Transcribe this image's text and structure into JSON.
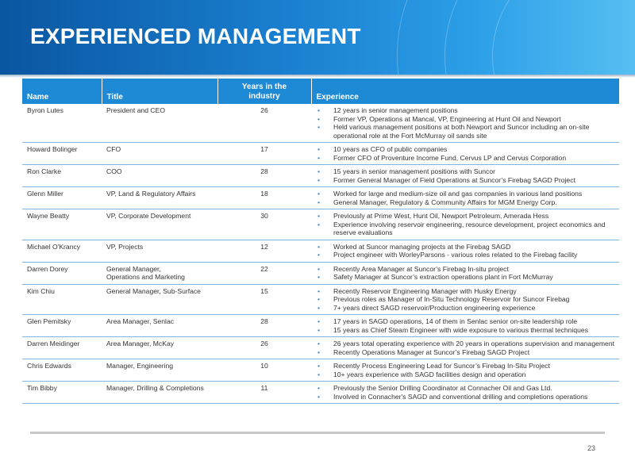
{
  "header": {
    "title": "EXPERIENCED MANAGEMENT"
  },
  "table": {
    "columns": [
      "Name",
      "Title",
      "Years in the industry",
      "Experience"
    ],
    "rows": [
      {
        "name": "Byron Lutes",
        "title": [
          "President and CEO"
        ],
        "years": "26",
        "experience": [
          "12 years in senior management positions",
          "Former VP, Operations at Mancal, VP, Engineering at Hunt Oil and Newport",
          "Held various management positions at both Newport and Suncor including an on-site operational role at the Fort McMurray oil sands site"
        ]
      },
      {
        "name": "Howard Bolinger",
        "title": [
          "CFO"
        ],
        "years": "17",
        "experience": [
          "10 years as CFO of public companies",
          "Former CFO of Proventure Income Fund, Cervus LP and Cervus Corporation"
        ]
      },
      {
        "name": "Ron Clarke",
        "title": [
          "COO"
        ],
        "years": "28",
        "experience": [
          "15 years in senior management positions with Suncor",
          "Former General Manager of Field Operations at Suncor’s Firebag SAGD Project"
        ]
      },
      {
        "name": "Glenn Miller",
        "title": [
          "VP, Land & Regulatory Affairs"
        ],
        "years": "18",
        "experience": [
          "Worked for large and medium-size oil and gas companies in various land positions",
          "General Manager, Regulatory & Community Affairs for MGM Energy Corp."
        ]
      },
      {
        "name": "Wayne Beatty",
        "title": [
          "VP, Corporate Development"
        ],
        "years": "30",
        "experience": [
          "Previously at Prime West, Hunt Oil, Newport Petroleum, Amerada Hess",
          "Experience involving reservoir engineering, resource development, project economics and reserve evaluations"
        ]
      },
      {
        "name": "Michael O'Krancy",
        "title": [
          "VP, Projects"
        ],
        "years": "12",
        "experience": [
          "Worked at Suncor managing projects at the Firebag SAGD",
          "Project engineer with WorleyParsons - various roles related to the Firebag facility"
        ]
      },
      {
        "name": "Darren Dorey",
        "title": [
          "General Manager,",
          "Operations and Marketing"
        ],
        "years": "22",
        "experience": [
          "Recently Area Manager at Suncor’s Firebag In-situ project",
          "Safety Manager at Suncor’s extraction operations plant in Fort McMurray"
        ]
      },
      {
        "name": "Kim Chiu",
        "title": [
          "General Manager, Sub-Surface"
        ],
        "years": "15",
        "experience": [
          "Recently Reservoir Engineering Manager with Husky Energy",
          "Previous roles as Manager of In-Situ Technology Reservoir for Suncor Firebag",
          "7+ years direct SAGD reservoir/Production engineering experience"
        ]
      },
      {
        "name": "Glen Pemitsky",
        "title": [
          "Area Manager, Senlac"
        ],
        "years": "28",
        "experience": [
          "17 years in SAGD operations, 14 of them in Senlac senior on-site leadership role",
          "15 years as Chief Steam Engineer with wide exposure to various thermal techniques"
        ]
      },
      {
        "name": "Darren Meidinger",
        "title": [
          "Area Manager, McKay"
        ],
        "years": "26",
        "experience": [
          "26 years total operating experience with 20 years in operations supervision and management",
          "Recently Operations Manager at Suncor’s Firebag SAGD Project"
        ]
      },
      {
        "name": "Chris Edwards",
        "title": [
          "Manager, Engineering"
        ],
        "years": "10",
        "experience": [
          "Recently Process Engineering Lead for Suncor’s Firebag In-Situ Project",
          "10+ years experience with SAGD facilities design and operation"
        ]
      },
      {
        "name": "Tim Bibby",
        "title": [
          "Manager, Drilling & Completions"
        ],
        "years": "11",
        "experience": [
          "Previously the Senior Drilling Coordinator at Connacher Oil and Gas Ltd.",
          "Involved in Connacher's SAGD and conventional drilling and completions operations"
        ]
      }
    ]
  },
  "footer": {
    "page_number": "23"
  },
  "colors": {
    "banner_start": "#0a56a0",
    "banner_end": "#56bff2",
    "header_fill": "#1e8ad6",
    "bullet": "#2a8ad6",
    "row_rule": "#7fb6e0"
  },
  "icons": {
    "bullet": "bullet-dot"
  }
}
